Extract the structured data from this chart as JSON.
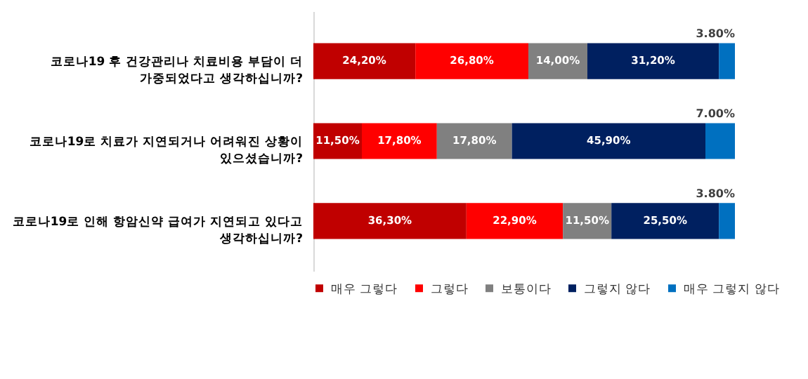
{
  "chart_data": {
    "type": "bar",
    "orientation": "horizontal",
    "stacked": true,
    "legend": "bottom",
    "categories": [
      "코로나19 후 건강관리나 치료비용 부담이 더 가중되었다고 생각하십니까?",
      "코로나19로 치료가 지연되거나 어려워진 상황이 있으셨습니까?",
      "코로나19로 인해 항암신약 급여가 지연되고 있다고 생각하십니까?"
    ],
    "series": [
      {
        "name": "매우 그렇다",
        "color": "#c00000",
        "values": [
          24.2,
          11.5,
          36.3
        ],
        "value_labels": [
          "24,20%",
          "11,50%",
          "36,30%"
        ]
      },
      {
        "name": "그렇다",
        "color": "#ff0000",
        "values": [
          26.8,
          17.8,
          22.9
        ],
        "value_labels": [
          "26,80%",
          "17,80%",
          "22,90%"
        ]
      },
      {
        "name": "보통이다",
        "color": "#808080",
        "values": [
          14.0,
          17.8,
          11.5
        ],
        "value_labels": [
          "14,00%",
          "17,80%",
          "11,50%"
        ]
      },
      {
        "name": "그렇지 않다",
        "color": "#002060",
        "values": [
          31.2,
          45.9,
          25.5
        ],
        "value_labels": [
          "31,20%",
          "45,90%",
          "25,50%"
        ]
      },
      {
        "name": "매우 그렇지 않다",
        "color": "#0070c0",
        "values": [
          3.8,
          7.0,
          3.8
        ],
        "value_labels": [
          "3.80%",
          "7.00%",
          "3.80%"
        ]
      }
    ]
  }
}
